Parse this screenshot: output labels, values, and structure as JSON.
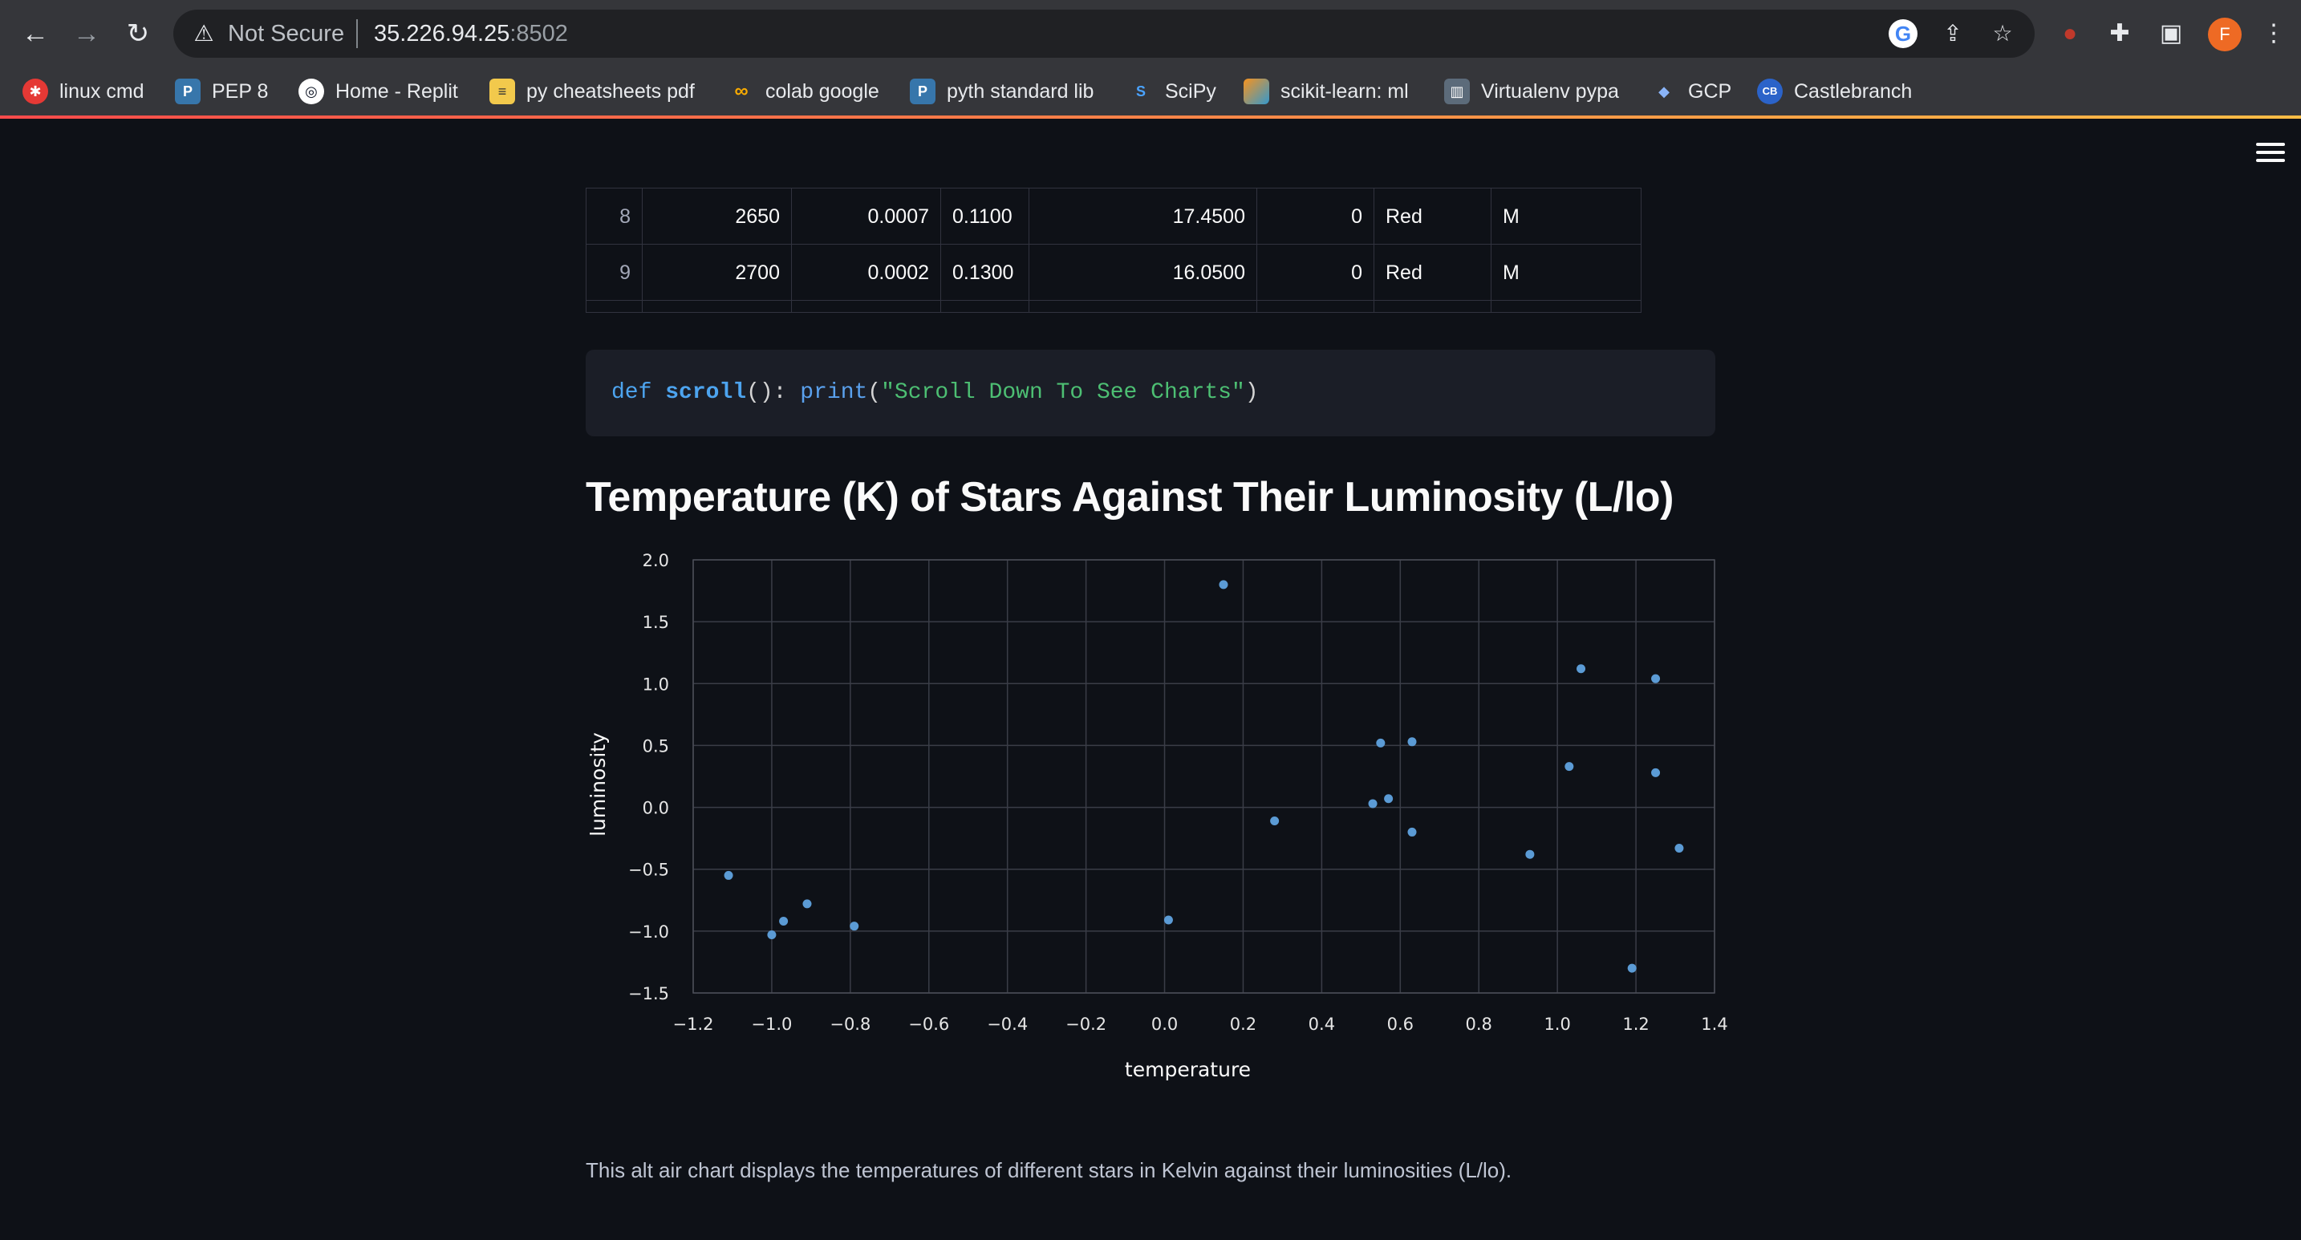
{
  "browser": {
    "security_label": "Not Secure",
    "host": "35.226.94.25",
    "port": ":8502",
    "profile_initial": "F",
    "bookmarks": [
      {
        "label": "linux cmd",
        "color": "#e53935"
      },
      {
        "label": "PEP 8",
        "color": "#3776ab"
      },
      {
        "label": "Home - Replit",
        "color": "#0e1525"
      },
      {
        "label": "py cheatsheets pdf",
        "color": "#f2c94c"
      },
      {
        "label": "colab google",
        "color": "#f9ab00"
      },
      {
        "label": "pyth standard lib",
        "color": "#3776ab"
      },
      {
        "label": "SciPy",
        "color": "#1a73e8"
      },
      {
        "label": "scikit-learn: ml",
        "color": "#f7931e"
      },
      {
        "label": "Virtualenv pypa",
        "color": "#5c6b7a"
      },
      {
        "label": "GCP",
        "color": "#4f7bd8"
      },
      {
        "label": "Castlebranch",
        "color": "#2b63c9"
      }
    ]
  },
  "table": {
    "rows": [
      [
        "8",
        "2650",
        "0.0007",
        "0.1100",
        "17.4500",
        "0",
        "Red",
        "M"
      ],
      [
        "9",
        "2700",
        "0.0002",
        "0.1300",
        "16.0500",
        "0",
        "Red",
        "M"
      ]
    ]
  },
  "code": {
    "keyword": "def",
    "fn_name": "scroll",
    "punct_open": "(): ",
    "builtin": "print",
    "paren_open": "(",
    "string": "\"Scroll Down To See Charts\"",
    "paren_close": ")"
  },
  "section_title": "Temperature (K) of Stars Against Their Luminosity (L/lo)",
  "chart_data": {
    "type": "scatter",
    "xlabel": "temperature",
    "ylabel": "luminosity",
    "xlim": [
      -1.2,
      1.4
    ],
    "ylim": [
      -1.5,
      2.0
    ],
    "x_ticks": [
      "−1.2",
      "−1.0",
      "−0.8",
      "−0.6",
      "−0.4",
      "−0.2",
      "0.0",
      "0.2",
      "0.4",
      "0.6",
      "0.8",
      "1.0",
      "1.2",
      "1.4"
    ],
    "y_ticks": [
      "2.0",
      "1.5",
      "1.0",
      "0.5",
      "0.0",
      "−0.5",
      "−1.0",
      "−1.5"
    ],
    "grid": true,
    "point_color": "#5b9bd5",
    "points": [
      {
        "x": -1.11,
        "y": -0.55
      },
      {
        "x": -1.0,
        "y": -1.03
      },
      {
        "x": -0.97,
        "y": -0.92
      },
      {
        "x": -0.91,
        "y": -0.78
      },
      {
        "x": -0.79,
        "y": -0.96
      },
      {
        "x": 0.01,
        "y": -0.91
      },
      {
        "x": 0.15,
        "y": 1.8
      },
      {
        "x": 0.28,
        "y": -0.11
      },
      {
        "x": 0.53,
        "y": 0.03
      },
      {
        "x": 0.55,
        "y": 0.52
      },
      {
        "x": 0.57,
        "y": 0.07
      },
      {
        "x": 0.63,
        "y": 0.53
      },
      {
        "x": 0.63,
        "y": -0.2
      },
      {
        "x": 0.93,
        "y": -0.38
      },
      {
        "x": 1.03,
        "y": 0.33
      },
      {
        "x": 1.06,
        "y": 1.12
      },
      {
        "x": 1.19,
        "y": -1.3
      },
      {
        "x": 1.25,
        "y": 1.04
      },
      {
        "x": 1.25,
        "y": 0.28
      },
      {
        "x": 1.31,
        "y": -0.33
      }
    ]
  },
  "caption": "This alt air chart displays the temperatures of different stars in Kelvin against their luminosities (L/lo)."
}
